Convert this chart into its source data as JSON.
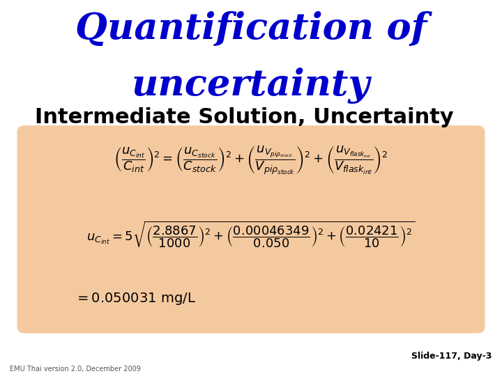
{
  "title_line1": "Quantification of",
  "title_line2": "uncertainty",
  "subtitle": "Intermediate Solution, Uncertainty",
  "title_color": "#0000CC",
  "subtitle_color": "#000000",
  "bg_color": "#FFFFFF",
  "box_color": "#F5C9A0",
  "slide_label": "Slide-117, Day-3",
  "footer_left": "EMU Thai version 2.0, December 2009",
  "title_fontsize": 38,
  "subtitle_fontsize": 22,
  "formula_fontsize": 13
}
